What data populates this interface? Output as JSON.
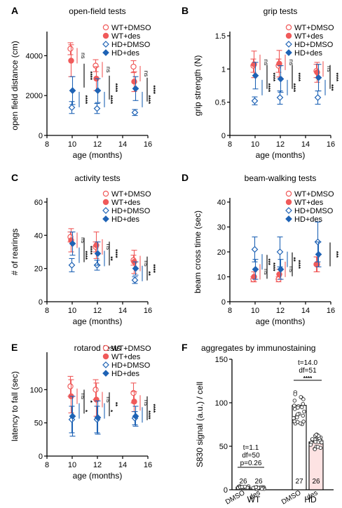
{
  "colors": {
    "wt": "#f05a5a",
    "hd": "#1f63b5",
    "bar_des": "#fde3e3"
  },
  "chart_data": [
    {
      "panel_label": "A",
      "type": "scatter",
      "title": "open-field tests",
      "xlabel": "age (months)",
      "ylabel": "open field distance (cm)",
      "xlim": [
        8,
        16
      ],
      "ylim": [
        0,
        5000
      ],
      "xticks": [
        8,
        10,
        12,
        14,
        16
      ],
      "yticks": [
        0,
        2000,
        4000
      ],
      "x": [
        10,
        12,
        15
      ],
      "series": [
        {
          "name": "WT+DMSO",
          "marker": "circle-open",
          "group": "wt",
          "values": [
            4350,
            3500,
            3450
          ],
          "err": [
            300,
            300,
            300
          ]
        },
        {
          "name": "WT+des",
          "marker": "circle-filled",
          "group": "wt",
          "values": [
            3750,
            2850,
            2700
          ],
          "err": [
            800,
            600,
            500
          ]
        },
        {
          "name": "HD+DMSO",
          "marker": "diamond-open",
          "group": "hd",
          "values": [
            1400,
            1350,
            1150
          ],
          "err": [
            300,
            250,
            150
          ]
        },
        {
          "name": "HD+des",
          "marker": "diamond-filled",
          "group": "hd",
          "values": [
            2250,
            2250,
            2350
          ],
          "err": [
            700,
            600,
            600
          ]
        }
      ],
      "annotations": [
        {
          "text": "ns",
          "color": "wt",
          "x": 10,
          "y": 4000
        },
        {
          "text": "****",
          "color": "hd",
          "x": 10,
          "y": 1800
        },
        {
          "text": "****",
          "color": "black",
          "x": 10,
          "y": 3000
        },
        {
          "text": "ns",
          "color": "wt",
          "x": 12,
          "y": 3300
        },
        {
          "text": "****",
          "color": "hd",
          "x": 12,
          "y": 1800
        },
        {
          "text": "****",
          "color": "black",
          "x": 12,
          "y": 2400
        },
        {
          "text": "ns",
          "color": "wt",
          "x": 15,
          "y": 3100
        },
        {
          "text": "****",
          "color": "hd",
          "x": 15,
          "y": 1800
        },
        {
          "text": "****",
          "color": "black",
          "x": 15,
          "y": 2300
        }
      ]
    },
    {
      "panel_label": "B",
      "type": "scatter",
      "title": "grip tests",
      "xlabel": "age (months)",
      "ylabel": "grip strength (N)",
      "xlim": [
        8,
        16
      ],
      "ylim": [
        0,
        1.5
      ],
      "xticks": [
        8,
        10,
        12,
        14,
        16
      ],
      "yticks": [
        0,
        0.5,
        1.0,
        1.5
      ],
      "x": [
        10,
        12,
        15
      ],
      "series": [
        {
          "name": "WT+DMSO",
          "marker": "circle-open",
          "group": "wt",
          "values": [
            1.05,
            1.05,
            0.97
          ],
          "err": [
            0.1,
            0.1,
            0.1
          ]
        },
        {
          "name": "WT+des",
          "marker": "circle-filled",
          "group": "wt",
          "values": [
            1.07,
            1.08,
            0.95
          ],
          "err": [
            0.2,
            0.2,
            0.15
          ]
        },
        {
          "name": "HD+DMSO",
          "marker": "diamond-open",
          "group": "hd",
          "values": [
            0.52,
            0.57,
            0.57
          ],
          "err": [
            0.06,
            0.1,
            0.1
          ]
        },
        {
          "name": "HD+des",
          "marker": "diamond-filled",
          "group": "hd",
          "values": [
            0.9,
            0.85,
            0.87
          ],
          "err": [
            0.2,
            0.2,
            0.2
          ]
        }
      ],
      "annotations": [
        {
          "text": "ns",
          "color": "wt",
          "x": 10,
          "y": 1.1
        },
        {
          "text": "****",
          "color": "hd",
          "x": 10,
          "y": 0.72
        },
        {
          "text": "****",
          "color": "black",
          "x": 10,
          "y": 0.88
        },
        {
          "text": "ns",
          "color": "wt",
          "x": 12,
          "y": 1.1
        },
        {
          "text": "****",
          "color": "hd",
          "x": 12,
          "y": 0.72
        },
        {
          "text": "****",
          "color": "black",
          "x": 12,
          "y": 0.88
        },
        {
          "text": "ns",
          "color": "wt",
          "x": 15,
          "y": 1.0
        },
        {
          "text": "***",
          "color": "hd",
          "x": 15,
          "y": 0.72
        },
        {
          "text": "****",
          "color": "black",
          "x": 15,
          "y": 0.88
        }
      ]
    },
    {
      "panel_label": "C",
      "type": "scatter",
      "title": "activity tests",
      "xlabel": "age (months)",
      "ylabel": "# of rearings",
      "xlim": [
        8,
        16
      ],
      "ylim": [
        0,
        60
      ],
      "xticks": [
        8,
        10,
        12,
        14,
        16
      ],
      "yticks": [
        0,
        20,
        40,
        60
      ],
      "x": [
        10,
        12,
        15
      ],
      "series": [
        {
          "name": "WT+DMSO",
          "marker": "circle-open",
          "group": "wt",
          "values": [
            39,
            33,
            25
          ],
          "err": [
            3,
            3,
            3
          ]
        },
        {
          "name": "WT+des",
          "marker": "circle-filled",
          "group": "wt",
          "values": [
            37,
            34,
            24
          ],
          "err": [
            7,
            8,
            7
          ]
        },
        {
          "name": "HD+DMSO",
          "marker": "diamond-open",
          "group": "hd",
          "values": [
            22,
            22,
            13
          ],
          "err": [
            4,
            3,
            2
          ]
        },
        {
          "name": "HD+des",
          "marker": "diamond-filled",
          "group": "hd",
          "values": [
            35,
            29,
            20
          ],
          "err": [
            7,
            7,
            4
          ]
        }
      ],
      "annotations": [
        {
          "text": "ns",
          "color": "wt",
          "x": 10,
          "y": 37
        },
        {
          "text": "****",
          "color": "hd",
          "x": 10,
          "y": 28
        },
        {
          "text": "****",
          "color": "black",
          "x": 10,
          "y": 31
        },
        {
          "text": "ns",
          "color": "wt",
          "x": 12,
          "y": 33
        },
        {
          "text": "**",
          "color": "hd",
          "x": 12,
          "y": 26
        },
        {
          "text": "****",
          "color": "black",
          "x": 12,
          "y": 29
        },
        {
          "text": "ns",
          "color": "wt",
          "x": 15,
          "y": 23
        },
        {
          "text": "**",
          "color": "hd",
          "x": 15,
          "y": 17
        },
        {
          "text": "****",
          "color": "black",
          "x": 15,
          "y": 20
        }
      ]
    },
    {
      "panel_label": "D",
      "type": "scatter",
      "title": "beam-walking tests",
      "xlabel": "age (months)",
      "ylabel": "beam cross time (sec)",
      "xlim": [
        8,
        16
      ],
      "ylim": [
        0,
        40
      ],
      "xticks": [
        8,
        10,
        12,
        14,
        16
      ],
      "yticks": [
        0,
        10,
        20,
        30,
        40
      ],
      "x": [
        10,
        12,
        15
      ],
      "series": [
        {
          "name": "WT+DMSO",
          "marker": "circle-open",
          "group": "wt",
          "values": [
            9,
            9,
            15
          ],
          "err": [
            1,
            1,
            3
          ]
        },
        {
          "name": "WT+des",
          "marker": "circle-filled",
          "group": "wt",
          "values": [
            10,
            11,
            15
          ],
          "err": [
            2,
            2,
            3
          ]
        },
        {
          "name": "HD+DMSO",
          "marker": "diamond-open",
          "group": "hd",
          "values": [
            21,
            20,
            24
          ],
          "err": [
            5,
            6,
            8
          ]
        },
        {
          "name": "HD+des",
          "marker": "diamond-filled",
          "group": "hd",
          "values": [
            13,
            13,
            19
          ],
          "err": [
            4,
            4,
            5
          ]
        }
      ],
      "annotations": [
        {
          "text": "ns",
          "color": "wt",
          "x": 10,
          "y": 12
        },
        {
          "text": "***",
          "color": "hd",
          "x": 10,
          "y": 16
        },
        {
          "text": "****",
          "color": "black",
          "x": 10,
          "y": 14
        },
        {
          "text": "ns",
          "color": "wt",
          "x": 12,
          "y": 13
        },
        {
          "text": "**",
          "color": "hd",
          "x": 12,
          "y": 17
        },
        {
          "text": "****",
          "color": "black",
          "x": 12,
          "y": 15
        },
        {
          "text": "***",
          "color": "black",
          "x": 15,
          "y": 19
        }
      ]
    },
    {
      "panel_label": "E",
      "type": "scatter",
      "title": "rotarod tests",
      "xlabel": "age (months)",
      "ylabel": "latency to fall (sec)",
      "xlim": [
        8,
        16
      ],
      "ylim": [
        0,
        150
      ],
      "xticks": [
        8,
        10,
        12,
        14,
        16
      ],
      "yticks": [
        0,
        50,
        100
      ],
      "x": [
        10,
        12,
        15
      ],
      "series": [
        {
          "name": "WT+DMSO",
          "marker": "circle-open",
          "group": "wt",
          "values": [
            105,
            100,
            95
          ],
          "err": [
            15,
            15,
            15
          ]
        },
        {
          "name": "WT+des",
          "marker": "circle-filled",
          "group": "wt",
          "values": [
            90,
            85,
            82
          ],
          "err": [
            25,
            25,
            15
          ]
        },
        {
          "name": "HD+DMSO",
          "marker": "diamond-open",
          "group": "hd",
          "values": [
            55,
            55,
            57
          ],
          "err": [
            20,
            20,
            10
          ]
        },
        {
          "name": "HD+des",
          "marker": "diamond-filled",
          "group": "hd",
          "values": [
            60,
            58,
            60
          ],
          "err": [
            30,
            25,
            15
          ]
        }
      ],
      "annotations": [
        {
          "text": "ns",
          "color": "wt",
          "x": 10,
          "y": 90
        },
        {
          "text": "*",
          "color": "hd",
          "x": 10,
          "y": 68
        },
        {
          "text": "*",
          "color": "black",
          "x": 10,
          "y": 82
        },
        {
          "text": "ns",
          "color": "wt",
          "x": 12,
          "y": 85
        },
        {
          "text": "*",
          "color": "hd",
          "x": 12,
          "y": 68
        },
        {
          "text": "**",
          "color": "black",
          "x": 12,
          "y": 78
        },
        {
          "text": "ns",
          "color": "wt",
          "x": 15,
          "y": 80
        },
        {
          "text": "****",
          "color": "hd",
          "x": 15,
          "y": 62
        },
        {
          "text": "****",
          "color": "black",
          "x": 15,
          "y": 72
        }
      ]
    },
    {
      "panel_label": "F",
      "type": "bar",
      "title": "aggregates by immunostaining",
      "xlabel": "",
      "ylabel": "S830 signal (a.u.) / cell",
      "ylim": [
        0,
        150
      ],
      "yticks": [
        0,
        50,
        100,
        150
      ],
      "categories": [
        "DMSO",
        "des",
        "DMSO",
        "des"
      ],
      "groups": [
        "WT",
        "HD"
      ],
      "values": [
        3,
        2,
        97,
        55
      ],
      "n": [
        "26",
        "26",
        "27",
        "26"
      ],
      "stats": {
        "wt": [
          "t=1.1",
          "df=50",
          "p=0.26"
        ],
        "hd": [
          "t=14.0",
          "df=51",
          "****"
        ]
      }
    }
  ]
}
